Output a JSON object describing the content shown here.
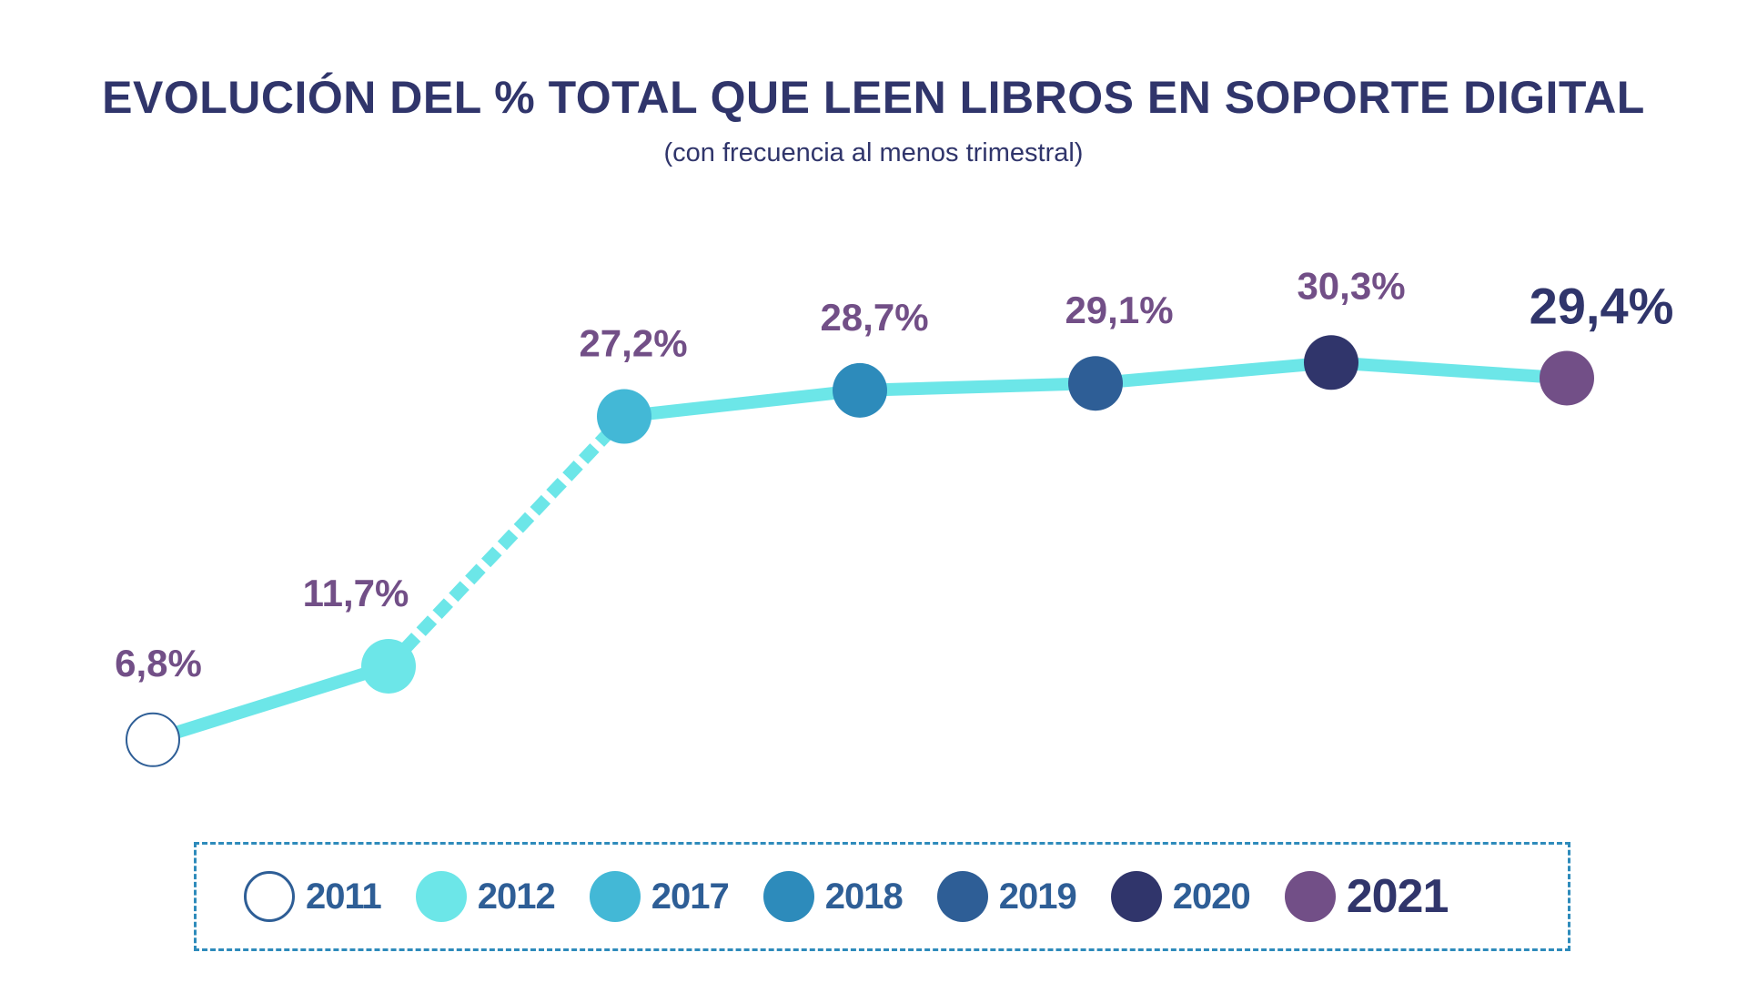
{
  "chart_data": {
    "type": "line",
    "title": "EVOLUCIÓN DEL % TOTAL QUE LEEN LIBROS EN SOPORTE DIGITAL",
    "subtitle": "(con frecuencia al menos trimestral)",
    "xlabel": "",
    "ylabel": "",
    "ylim": [
      5,
      31
    ],
    "grid": false,
    "legend_position": "bottom",
    "categories": [
      "2011",
      "2012",
      "2017",
      "2018",
      "2019",
      "2020",
      "2021"
    ],
    "values": [
      6.8,
      11.7,
      27.2,
      28.7,
      29.1,
      30.3,
      29.4
    ],
    "data_labels": [
      "6,8%",
      "11,7%",
      "27,2%",
      "28,7%",
      "29,1%",
      "30,3%",
      "29,4%"
    ],
    "segment_styles": [
      "solid",
      "dashed",
      "solid",
      "solid",
      "solid",
      "solid"
    ],
    "line_color": "#6ce6e8",
    "label_color": "#724f87",
    "highlight_label_color": "#30356b",
    "highlight_index": 6,
    "point_colors": [
      "#ffffff",
      "#6ce6e8",
      "#43b8d6",
      "#2d8bbb",
      "#2e5e96",
      "#30356b",
      "#724f87"
    ],
    "point_stroke": "#2e5e96",
    "legend": [
      {
        "label": "2011",
        "color": "#ffffff",
        "outline": "#2e5e96"
      },
      {
        "label": "2012",
        "color": "#6ce6e8"
      },
      {
        "label": "2017",
        "color": "#43b8d6"
      },
      {
        "label": "2018",
        "color": "#2d8bbb"
      },
      {
        "label": "2019",
        "color": "#2e5e96"
      },
      {
        "label": "2020",
        "color": "#30356b"
      },
      {
        "label": "2021",
        "color": "#724f87"
      }
    ]
  }
}
